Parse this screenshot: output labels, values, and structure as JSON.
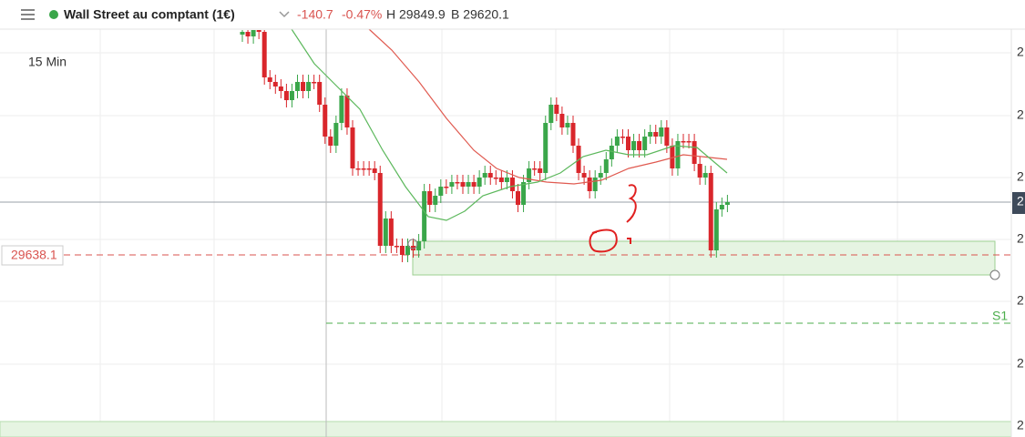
{
  "header": {
    "title": "Wall Street au comptant (1€)",
    "change": "-140.7",
    "change_percent": "-0.47%",
    "high": "H 29849.9",
    "low": "B 29620.1"
  },
  "chart": {
    "timeframe": "15 Min",
    "price_marker": "29638.1",
    "support_label": "S1",
    "axis_labels": [
      "2",
      "2",
      "2",
      "2",
      "2",
      "2",
      "2",
      "2"
    ]
  }
}
